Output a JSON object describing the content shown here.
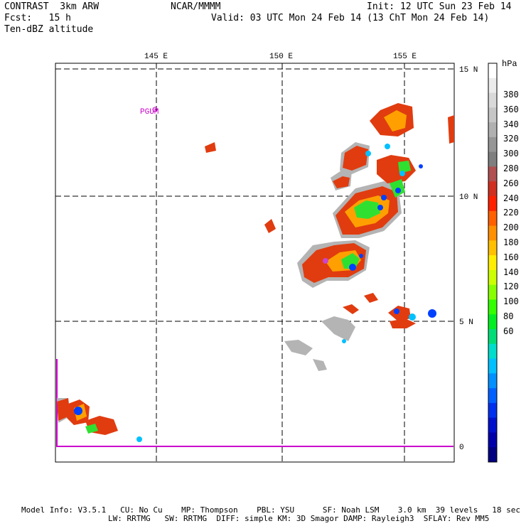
{
  "header": {
    "left_line1": "CONTRAST  3km ARW",
    "left_line2": "Fcst:   15 h",
    "left_line3": "Ten-dBZ altitude",
    "center": "NCAR/MMMM",
    "init": "Init: 12 UTC Sun 23 Feb 14",
    "valid": "Valid: 03 UTC Mon 24 Feb 14 (13 ChT Mon 24 Feb 14)"
  },
  "axes": {
    "lon_labels": [
      "145 E",
      "150 E",
      "155 E"
    ],
    "lat_labels": [
      "15 N",
      "10 N",
      "5 N",
      "0"
    ]
  },
  "station_label": "PGUM",
  "colorbar": {
    "unit": "hPa",
    "labels": [
      "380",
      "360",
      "340",
      "320",
      "300",
      "280",
      "260",
      "240",
      "220",
      "200",
      "180",
      "160",
      "140",
      "120",
      "100",
      "80",
      "60"
    ],
    "colors": [
      "#ffffff",
      "#ececec",
      "#d9d9d9",
      "#c6c6c6",
      "#b0b0b0",
      "#969696",
      "#7f7f7f",
      "#b05050",
      "#d03020",
      "#ff2000",
      "#ff6000",
      "#ff9000",
      "#ffc000",
      "#ffee00",
      "#ccff00",
      "#88ff00",
      "#33ff00",
      "#00ee22",
      "#00dd77",
      "#00ddcc",
      "#00c0ff",
      "#0090ff",
      "#0060ff",
      "#0030ee",
      "#0010cc",
      "#0000aa",
      "#000080"
    ]
  },
  "footer": {
    "line1": "Model Info: V3.5.1   CU: No Cu    MP: Thompson    PBL: YSU      SF: Noah LSM    3.0 km  39 levels   18 sec",
    "line2": "LW: RRTMG   SW: RRTMG  DIFF: simple KM: 3D Smagor DAMP: Rayleigh3  SFLAY: Rev MM5"
  }
}
